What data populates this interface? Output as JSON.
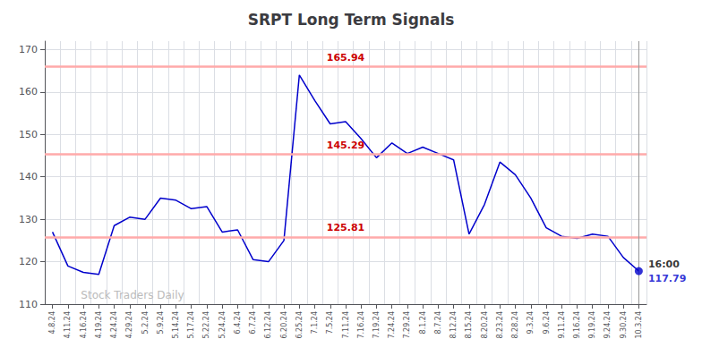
{
  "chart_data": {
    "type": "line",
    "title": "SRPT Long Term Signals",
    "categories": [
      "4.8.24",
      "4.11.24",
      "4.16.24",
      "4.19.24",
      "4.24.24",
      "4.29.24",
      "5.2.24",
      "5.9.24",
      "5.14.24",
      "5.17.24",
      "5.22.24",
      "5.24.24",
      "6.4.24",
      "6.7.24",
      "6.12.24",
      "6.20.24",
      "6.25.24",
      "7.1.24",
      "7.5.24",
      "7.11.24",
      "7.16.24",
      "7.19.24",
      "7.24.24",
      "7.29.24",
      "8.1.24",
      "8.7.24",
      "8.12.24",
      "8.15.24",
      "8.20.24",
      "8.23.24",
      "8.28.24",
      "9.3.24",
      "9.6.24",
      "9.11.24",
      "9.16.24",
      "9.19.24",
      "9.24.24",
      "9.30.24",
      "10.3.24"
    ],
    "values": [
      127.0,
      119.0,
      117.5,
      117.0,
      128.5,
      130.5,
      130.0,
      135.0,
      134.5,
      132.5,
      133.0,
      127.0,
      127.5,
      120.5,
      120.0,
      125.0,
      164.0,
      158.0,
      152.5,
      153.0,
      149.0,
      144.5,
      148.0,
      145.5,
      147.0,
      145.5,
      144.0,
      126.5,
      133.5,
      143.5,
      140.5,
      135.0,
      128.0,
      126.0,
      125.5,
      126.5,
      126.0,
      121.0,
      117.79
    ],
    "color": "#0000cc",
    "ylim": [
      110,
      172
    ],
    "yticks": [
      110,
      120,
      130,
      140,
      150,
      160,
      170
    ],
    "grid": true,
    "hlines": [
      {
        "value": 165.94,
        "color": "#ffaaaa",
        "label_color": "#cc0000"
      },
      {
        "value": 145.29,
        "color": "#ffaaaa",
        "label_color": "#cc0000"
      },
      {
        "value": 125.81,
        "color": "#ffaaaa",
        "label_color": "#cc0000"
      }
    ],
    "endpoint": {
      "value": 117.79,
      "label": "16:00",
      "color": "#0000cc",
      "label_color": "#000000"
    },
    "watermark": "Stock Traders Daily",
    "watermark_color": "#bbbbbb"
  }
}
